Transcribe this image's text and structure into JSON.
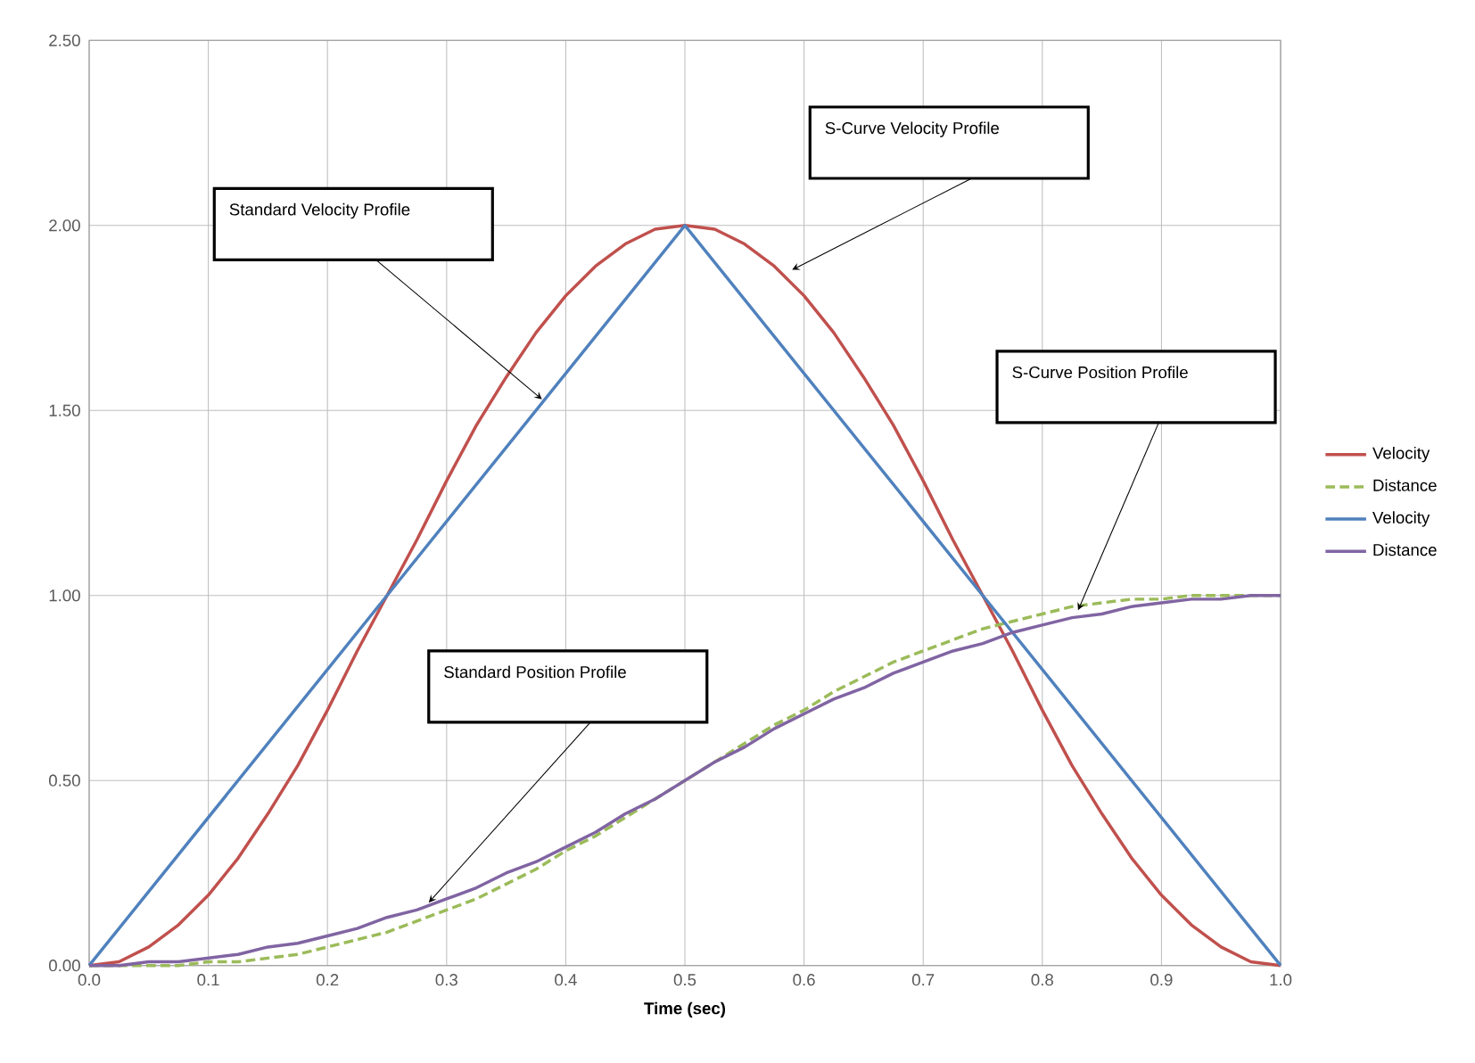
{
  "chart_data": {
    "type": "line",
    "xlabel": "Time (sec)",
    "xlim": [
      0,
      1
    ],
    "ylim": [
      0,
      2.5
    ],
    "xticks": [
      {
        "value": 0,
        "label": "0.0"
      },
      {
        "value": 0.1,
        "label": "0.1"
      },
      {
        "value": 0.2,
        "label": "0.2"
      },
      {
        "value": 0.3,
        "label": "0.3"
      },
      {
        "value": 0.4,
        "label": "0.4"
      },
      {
        "value": 0.5,
        "label": "0.5"
      },
      {
        "value": 0.6,
        "label": "0.6"
      },
      {
        "value": 0.7,
        "label": "0.7"
      },
      {
        "value": 0.8,
        "label": "0.8"
      },
      {
        "value": 0.9,
        "label": "0.9"
      },
      {
        "value": 1,
        "label": "1.0"
      }
    ],
    "yticks": [
      {
        "value": 0,
        "label": "0.00"
      },
      {
        "value": 0.5,
        "label": "0.50"
      },
      {
        "value": 1,
        "label": "1.00"
      },
      {
        "value": 1.5,
        "label": "1.50"
      },
      {
        "value": 2,
        "label": "2.00"
      },
      {
        "value": 2.5,
        "label": "2.50"
      }
    ],
    "grid": true,
    "legend": "right",
    "marker": "none",
    "x": [
      0,
      0.025,
      0.05,
      0.075,
      0.1,
      0.125,
      0.15,
      0.175,
      0.2,
      0.225,
      0.25,
      0.275,
      0.3,
      0.325,
      0.35,
      0.375,
      0.4,
      0.425,
      0.45,
      0.475,
      0.5,
      0.525,
      0.55,
      0.575,
      0.6,
      0.625,
      0.65,
      0.675,
      0.7,
      0.725,
      0.75,
      0.775,
      0.8,
      0.825,
      0.85,
      0.875,
      0.9,
      0.925,
      0.95,
      0.975,
      1
    ],
    "series": [
      {
        "name": "Velocity",
        "color": "#c0504d",
        "line_style": "solid",
        "values": [
          0,
          0.01,
          0.05,
          0.11,
          0.19,
          0.29,
          0.41,
          0.54,
          0.69,
          0.85,
          1.0,
          1.15,
          1.31,
          1.46,
          1.59,
          1.71,
          1.81,
          1.89,
          1.95,
          1.99,
          2.0,
          1.99,
          1.95,
          1.89,
          1.81,
          1.71,
          1.59,
          1.46,
          1.31,
          1.15,
          1.0,
          0.85,
          0.69,
          0.54,
          0.41,
          0.29,
          0.19,
          0.11,
          0.05,
          0.01,
          0
        ]
      },
      {
        "name": "Distance",
        "color": "#9bbb59",
        "line_style": "dashed",
        "values": [
          0,
          0,
          0,
          0,
          0.01,
          0.01,
          0.02,
          0.03,
          0.05,
          0.07,
          0.09,
          0.12,
          0.15,
          0.18,
          0.22,
          0.26,
          0.31,
          0.35,
          0.4,
          0.45,
          0.5,
          0.55,
          0.6,
          0.65,
          0.69,
          0.74,
          0.78,
          0.82,
          0.85,
          0.88,
          0.91,
          0.93,
          0.95,
          0.97,
          0.98,
          0.99,
          0.99,
          1.0,
          1.0,
          1.0,
          1.0
        ]
      },
      {
        "name": "Velocity",
        "color": "#4f81bd",
        "line_style": "solid",
        "x": [
          0,
          0.25,
          0.5,
          0.75,
          1
        ],
        "values": [
          0,
          1.0,
          2.0,
          1.0,
          0
        ]
      },
      {
        "name": "Distance",
        "color": "#8064a2",
        "line_style": "solid",
        "values": [
          0,
          0,
          0.01,
          0.01,
          0.02,
          0.03,
          0.05,
          0.06,
          0.08,
          0.1,
          0.13,
          0.15,
          0.18,
          0.21,
          0.25,
          0.28,
          0.32,
          0.36,
          0.41,
          0.45,
          0.5,
          0.55,
          0.59,
          0.64,
          0.68,
          0.72,
          0.75,
          0.79,
          0.82,
          0.85,
          0.87,
          0.9,
          0.92,
          0.94,
          0.95,
          0.97,
          0.98,
          0.99,
          0.99,
          1.0,
          1.0
        ]
      }
    ],
    "annotations": [
      "Standard Velocity Profile",
      "S-Curve Velocity Profile",
      "S-Curve Position Profile",
      "Standard Position Profile"
    ]
  }
}
